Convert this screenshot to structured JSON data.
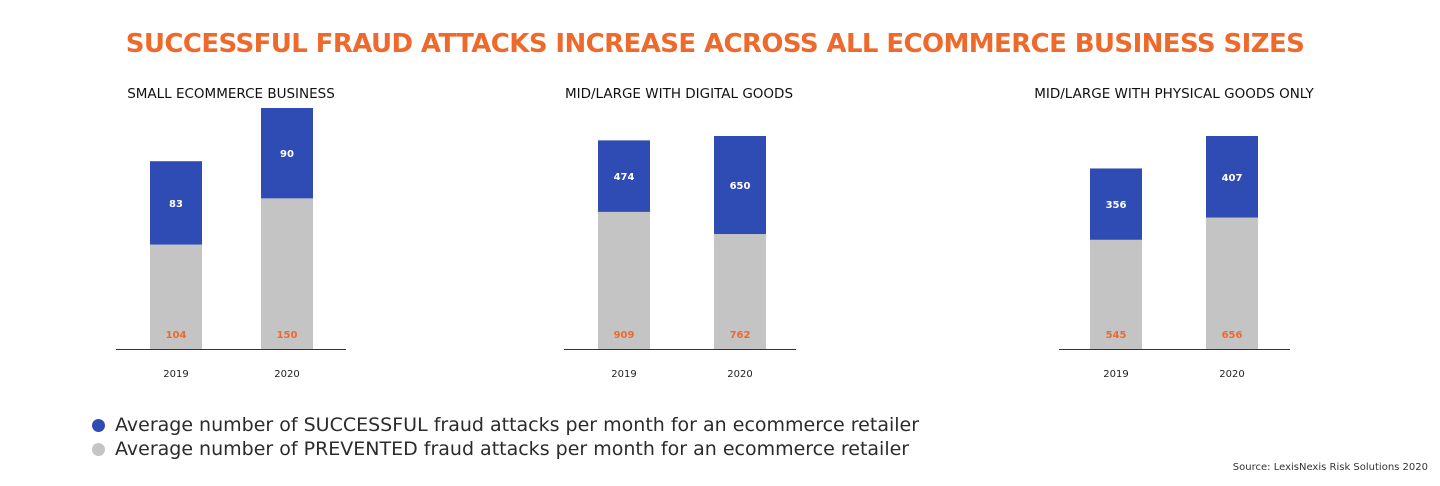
{
  "title": "SUCCESSFUL FRAUD ATTACKS INCREASE ACROSS ALL ECOMMERCE BUSINESS SIZES",
  "colors": {
    "successful": "#2f4bb4",
    "prevented": "#c4c4c4",
    "title": "#ee6a2c",
    "prevented_label": "#ee6a2c",
    "successful_label": "#ffffff"
  },
  "legend": [
    {
      "label": "Average number of SUCCESSFUL fraud attacks per month for an ecommerce retailer",
      "color": "#2f4bb4"
    },
    {
      "label": "Average number of PREVENTED fraud attacks per month for an ecommerce retailer",
      "color": "#c4c4c4"
    }
  ],
  "source": "Source: LexisNexis Risk Solutions 2020",
  "chart_data": [
    {
      "type": "bar",
      "stacked": true,
      "title": "SMALL ECOMMERCE BUSINESS",
      "categories": [
        "2019",
        "2020"
      ],
      "series": [
        {
          "name": "PREVENTED",
          "values": [
            104,
            150
          ]
        },
        {
          "name": "SUCCESSFUL",
          "values": [
            83,
            90
          ]
        }
      ]
    },
    {
      "type": "bar",
      "stacked": true,
      "title": "MID/LARGE WITH DIGITAL GOODS",
      "categories": [
        "2019",
        "2020"
      ],
      "series": [
        {
          "name": "PREVENTED",
          "values": [
            909,
            762
          ]
        },
        {
          "name": "SUCCESSFUL",
          "values": [
            474,
            650
          ]
        }
      ]
    },
    {
      "type": "bar",
      "stacked": true,
      "title": "MID/LARGE WITH PHYSICAL GOODS ONLY",
      "categories": [
        "2019",
        "2020"
      ],
      "series": [
        {
          "name": "PREVENTED",
          "values": [
            545,
            656
          ]
        },
        {
          "name": "SUCCESSFUL",
          "values": [
            356,
            407
          ]
        }
      ]
    }
  ]
}
